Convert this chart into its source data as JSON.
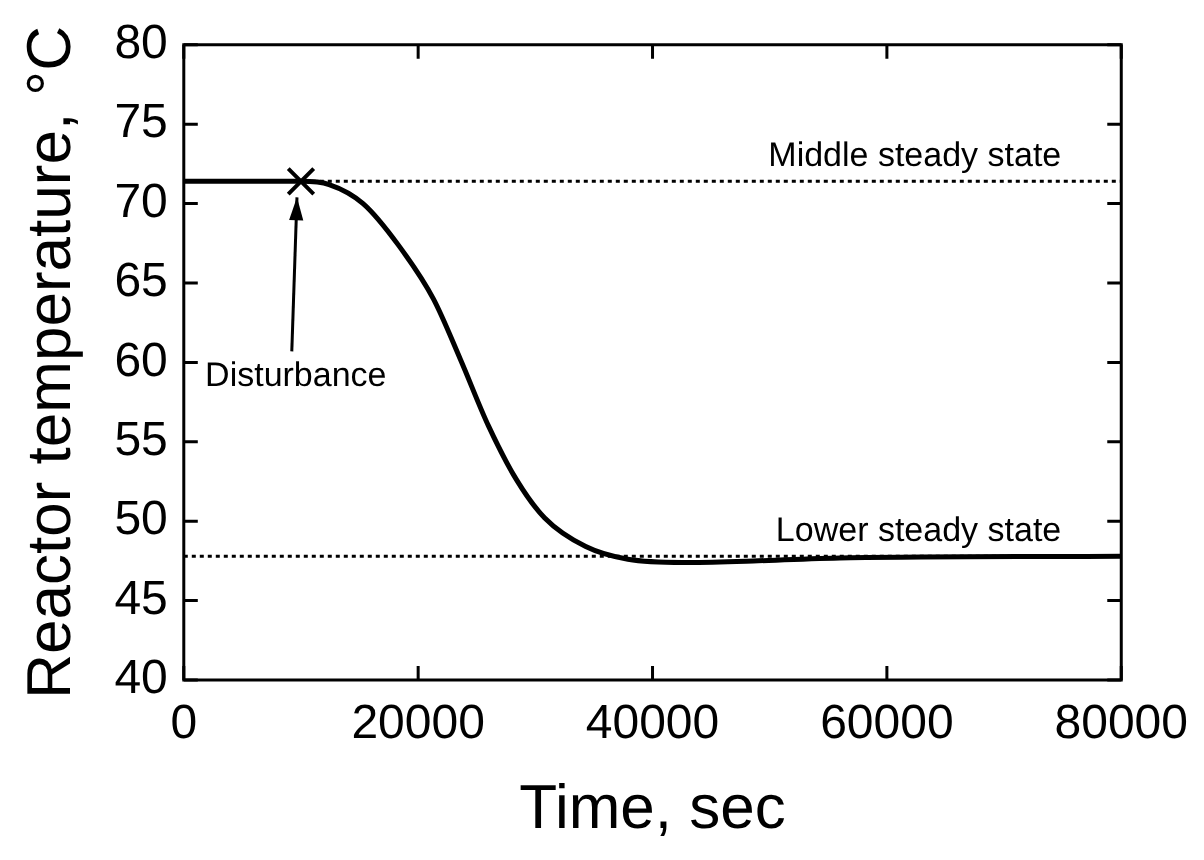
{
  "chart_data": {
    "type": "line",
    "xlabel": "Time, sec",
    "ylabel": "Reactor temperature, °C",
    "series": [
      {
        "color": "#000000",
        "x": [
          0,
          10000,
          12400,
          15300,
          18300,
          21300,
          23600,
          26000,
          28400,
          30800,
          34300,
          37900,
          42600,
          48600,
          56900,
          80000
        ],
        "values": [
          71.4,
          71.4,
          71.2,
          70,
          67.4,
          64,
          60.2,
          56,
          52.6,
          50.2,
          48.4,
          47.6,
          47.4,
          47.5,
          47.7,
          47.8
        ]
      },
      {
        "type": "scatter",
        "marker": "cross",
        "color": "#000000",
        "x": [
          10000
        ],
        "values": [
          71.4
        ]
      }
    ],
    "xlim": [
      0,
      80000
    ],
    "xticks": [
      0,
      20000,
      40000,
      60000,
      80000
    ],
    "ylim": [
      40,
      80
    ],
    "yticks": [
      40,
      45,
      50,
      55,
      60,
      65,
      70,
      75,
      80
    ],
    "grid": false,
    "legend": false,
    "marker": "none",
    "line_style": "solid",
    "ref_lines": [
      {
        "axis": "y",
        "value": 71.4,
        "label": "Middle steady state",
        "line_style": "dotted",
        "color": "#000000"
      },
      {
        "axis": "y",
        "value": 47.8,
        "label": "Lower steady state",
        "line_style": "dotted",
        "color": "#000000"
      }
    ],
    "annotations": [
      {
        "text": "Disturbance",
        "x": 10000,
        "y": 71.4
      }
    ]
  }
}
